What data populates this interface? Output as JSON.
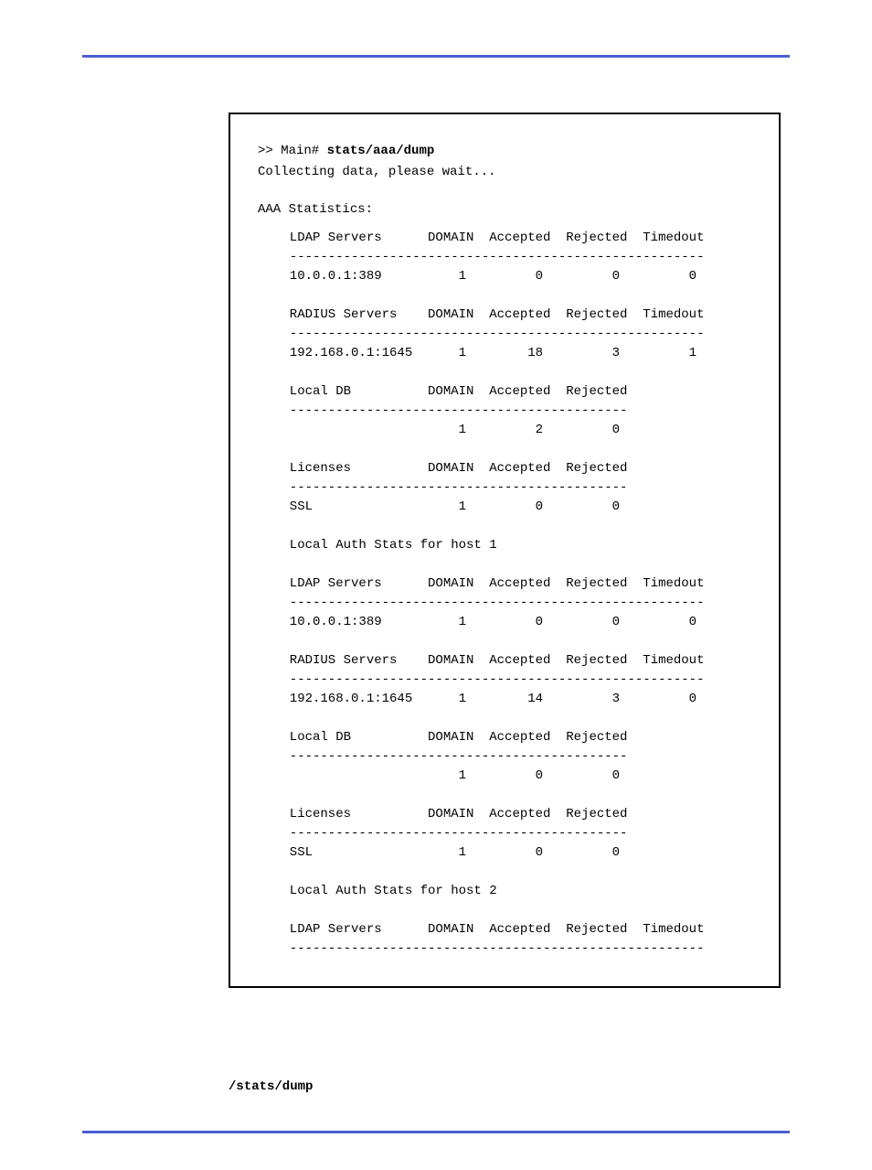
{
  "header": {
    "line_color": "#4a5fd1"
  },
  "terminal": {
    "prompt_prefix": ">> Main# ",
    "command": "stats/aaa/dump",
    "collecting": "Collecting data, please wait...",
    "stats_title": "AAA Statistics:",
    "sections": {
      "ldap1": {
        "header": "  LDAP Servers      DOMAIN  Accepted  Rejected  Timedout",
        "divider": "  ------------------------------------------------------",
        "row": "  10.0.0.1:389          1         0         0         0"
      },
      "radius1": {
        "header": "  RADIUS Servers    DOMAIN  Accepted  Rejected  Timedout",
        "divider": "  ------------------------------------------------------",
        "row": "  192.168.0.1:1645      1        18         3         1"
      },
      "localdb1": {
        "header": "  Local DB          DOMAIN  Accepted  Rejected",
        "divider": "  --------------------------------------------",
        "row": "                        1         2         0"
      },
      "licenses1": {
        "header": "  Licenses          DOMAIN  Accepted  Rejected",
        "divider": "  --------------------------------------------",
        "row": "  SSL                   1         0         0"
      },
      "host1_title": "  Local Auth Stats for host 1",
      "ldap2": {
        "header": "  LDAP Servers      DOMAIN  Accepted  Rejected  Timedout",
        "divider": "  ------------------------------------------------------",
        "row": "  10.0.0.1:389          1         0         0         0"
      },
      "radius2": {
        "header": "  RADIUS Servers    DOMAIN  Accepted  Rejected  Timedout",
        "divider": "  ------------------------------------------------------",
        "row": "  192.168.0.1:1645      1        14         3         0"
      },
      "localdb2": {
        "header": "  Local DB          DOMAIN  Accepted  Rejected",
        "divider": "  --------------------------------------------",
        "row": "                        1         0         0"
      },
      "licenses2": {
        "header": "  Licenses          DOMAIN  Accepted  Rejected",
        "divider": "  --------------------------------------------",
        "row": "  SSL                   1         0         0"
      },
      "host2_title": "  Local Auth Stats for host 2",
      "ldap3": {
        "header": "  LDAP Servers      DOMAIN  Accepted  Rejected  Timedout",
        "divider": "  ------------------------------------------------------"
      }
    }
  },
  "footer": {
    "cmd": "/stats/dump"
  }
}
